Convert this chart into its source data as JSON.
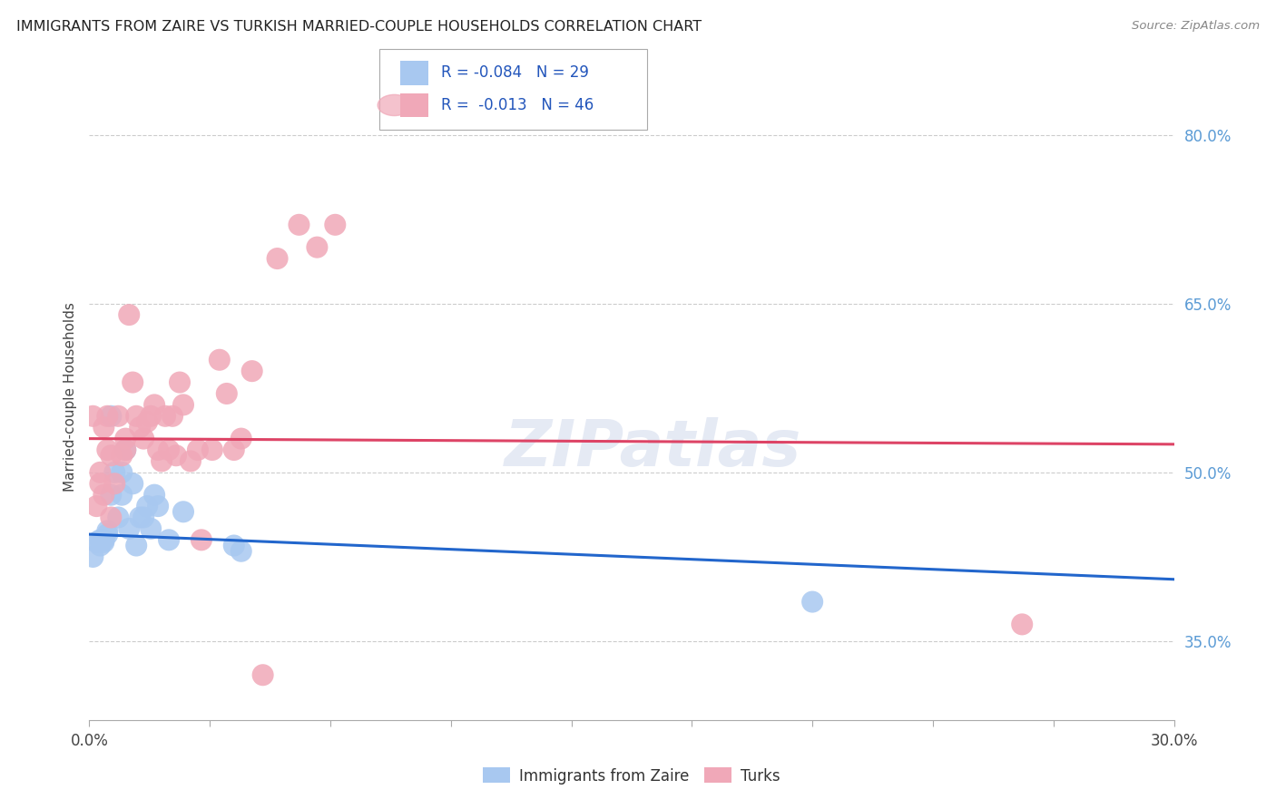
{
  "title": "IMMIGRANTS FROM ZAIRE VS TURKISH MARRIED-COUPLE HOUSEHOLDS CORRELATION CHART",
  "source": "Source: ZipAtlas.com",
  "ylabel": "Married-couple Households",
  "ytick_labels": [
    "35.0%",
    "50.0%",
    "65.0%",
    "80.0%"
  ],
  "xlim": [
    0.0,
    0.3
  ],
  "ylim": [
    0.28,
    0.855
  ],
  "legend_R_blue": "-0.084",
  "legend_N_blue": "29",
  "legend_R_pink": "-0.013",
  "legend_N_pink": "46",
  "blue_color": "#A8C8F0",
  "pink_color": "#F0A8B8",
  "blue_line_color": "#2266CC",
  "pink_line_color": "#DD4466",
  "watermark": "ZIPatlas",
  "blue_scatter_x": [
    0.001,
    0.002,
    0.003,
    0.003,
    0.004,
    0.004,
    0.005,
    0.005,
    0.006,
    0.006,
    0.007,
    0.008,
    0.009,
    0.009,
    0.01,
    0.011,
    0.012,
    0.013,
    0.014,
    0.015,
    0.016,
    0.017,
    0.018,
    0.019,
    0.022,
    0.026,
    0.04,
    0.042,
    0.2
  ],
  "blue_scatter_y": [
    0.425,
    0.438,
    0.44,
    0.435,
    0.44,
    0.438,
    0.445,
    0.448,
    0.48,
    0.55,
    0.5,
    0.46,
    0.48,
    0.5,
    0.52,
    0.45,
    0.49,
    0.435,
    0.46,
    0.46,
    0.47,
    0.45,
    0.48,
    0.47,
    0.44,
    0.465,
    0.435,
    0.43,
    0.385
  ],
  "pink_scatter_x": [
    0.001,
    0.002,
    0.003,
    0.003,
    0.004,
    0.004,
    0.005,
    0.005,
    0.006,
    0.006,
    0.007,
    0.008,
    0.009,
    0.01,
    0.01,
    0.011,
    0.012,
    0.013,
    0.014,
    0.015,
    0.016,
    0.017,
    0.018,
    0.019,
    0.02,
    0.021,
    0.022,
    0.023,
    0.024,
    0.025,
    0.026,
    0.028,
    0.03,
    0.031,
    0.034,
    0.036,
    0.038,
    0.04,
    0.042,
    0.045,
    0.048,
    0.052,
    0.058,
    0.063,
    0.068,
    0.258
  ],
  "pink_scatter_y": [
    0.55,
    0.47,
    0.49,
    0.5,
    0.48,
    0.54,
    0.52,
    0.55,
    0.46,
    0.515,
    0.49,
    0.55,
    0.515,
    0.52,
    0.53,
    0.64,
    0.58,
    0.55,
    0.54,
    0.53,
    0.545,
    0.55,
    0.56,
    0.52,
    0.51,
    0.55,
    0.52,
    0.55,
    0.515,
    0.58,
    0.56,
    0.51,
    0.52,
    0.44,
    0.52,
    0.6,
    0.57,
    0.52,
    0.53,
    0.59,
    0.32,
    0.69,
    0.72,
    0.7,
    0.72,
    0.365
  ],
  "blue_line_x": [
    0.0,
    0.3
  ],
  "blue_line_y": [
    0.445,
    0.405
  ],
  "pink_line_x": [
    0.0,
    0.3
  ],
  "pink_line_y": [
    0.53,
    0.525
  ],
  "grid_yticks": [
    0.35,
    0.5,
    0.65,
    0.8
  ],
  "background_color": "#FFFFFF",
  "plot_bg_color": "#FFFFFF"
}
